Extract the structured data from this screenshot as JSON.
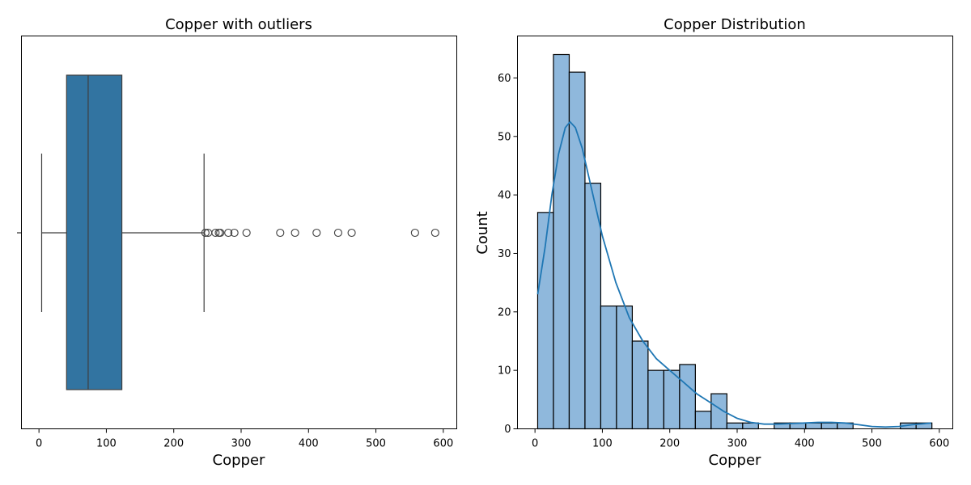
{
  "chart_data": [
    {
      "type": "box",
      "title": "Copper with outliers",
      "xlabel": "Copper",
      "ylabel": "",
      "xlim": [
        -26,
        620
      ],
      "xticks": [
        0,
        100,
        200,
        300,
        400,
        500,
        600
      ],
      "box": {
        "whisker_low": 4,
        "q1": 41,
        "median": 73,
        "q3": 123,
        "whisker_high": 245
      },
      "outliers": [
        247,
        251,
        262,
        267,
        269,
        281,
        290,
        308,
        358,
        380,
        412,
        444,
        464,
        558,
        588
      ],
      "colors": {
        "box": "#3274a1",
        "edge": "#3f3f3f"
      }
    },
    {
      "type": "histogram",
      "title": "Copper Distribution",
      "xlabel": "Copper",
      "ylabel": "Count",
      "xlim": [
        -26,
        620
      ],
      "ylim": [
        0,
        64
      ],
      "xticks": [
        0,
        100,
        200,
        300,
        400,
        500,
        600
      ],
      "yticks": [
        0,
        10,
        20,
        30,
        40,
        50,
        60
      ],
      "bin_start": 4,
      "bin_width": 23.4,
      "counts": [
        37,
        64,
        61,
        42,
        21,
        21,
        15,
        10,
        10,
        11,
        3,
        6,
        1,
        1,
        0,
        1,
        1,
        1,
        1,
        1,
        0,
        0,
        0,
        1,
        1
      ],
      "kde": [
        [
          4,
          23
        ],
        [
          15,
          31
        ],
        [
          25,
          40
        ],
        [
          35,
          47
        ],
        [
          45,
          51.5
        ],
        [
          52,
          52.5
        ],
        [
          60,
          51.5
        ],
        [
          70,
          48
        ],
        [
          80,
          43
        ],
        [
          100,
          33
        ],
        [
          120,
          25
        ],
        [
          140,
          19
        ],
        [
          160,
          15
        ],
        [
          180,
          12
        ],
        [
          200,
          10
        ],
        [
          220,
          8
        ],
        [
          240,
          6
        ],
        [
          260,
          4.5
        ],
        [
          280,
          3
        ],
        [
          300,
          1.8
        ],
        [
          320,
          1.1
        ],
        [
          340,
          0.8
        ],
        [
          360,
          0.8
        ],
        [
          380,
          0.9
        ],
        [
          400,
          1
        ],
        [
          420,
          1.1
        ],
        [
          440,
          1.1
        ],
        [
          460,
          1
        ],
        [
          480,
          0.7
        ],
        [
          500,
          0.4
        ],
        [
          520,
          0.3
        ],
        [
          540,
          0.4
        ],
        [
          560,
          0.7
        ],
        [
          588,
          1
        ]
      ],
      "colors": {
        "bar": "#8fb8dc",
        "edge": "#000000",
        "kde": "#1f77b4"
      }
    }
  ]
}
